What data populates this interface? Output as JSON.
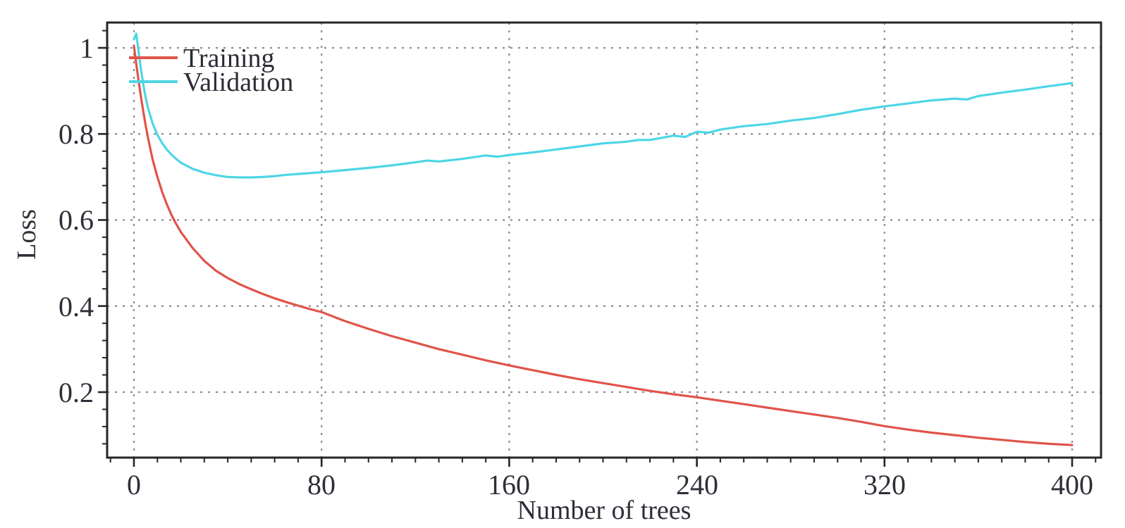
{
  "chart_data": {
    "type": "line",
    "title": "",
    "xlabel": "Number of trees",
    "ylabel": "Loss",
    "xlim": [
      -11.4,
      412.4
    ],
    "ylim": [
      0.048,
      1.059
    ],
    "x_major_ticks": [
      0,
      80,
      160,
      240,
      320,
      400
    ],
    "x_tick_labels": [
      "0",
      "80",
      "160",
      "240",
      "320",
      "400"
    ],
    "x_minor_step": 10,
    "y_major_ticks": [
      1.0,
      0.8,
      0.6,
      0.4,
      0.2
    ],
    "y_tick_labels": [
      "1",
      "0.8",
      "0.6",
      "0.4",
      "0.2"
    ],
    "y_minor_step": 0.04,
    "grid": "dotted lines at major ticks, both axes",
    "legend_position": "inside top-left, no border",
    "series": [
      {
        "name": "Training",
        "color": "#e0544a",
        "points": [
          [
            0,
            1.005
          ],
          [
            1,
            0.963
          ],
          [
            2,
            0.923
          ],
          [
            3,
            0.886
          ],
          [
            4,
            0.852
          ],
          [
            5,
            0.82
          ],
          [
            6,
            0.791
          ],
          [
            8,
            0.74
          ],
          [
            10,
            0.7
          ],
          [
            12,
            0.666
          ],
          [
            14,
            0.637
          ],
          [
            16,
            0.612
          ],
          [
            18,
            0.591
          ],
          [
            20,
            0.572
          ],
          [
            25,
            0.535
          ],
          [
            30,
            0.505
          ],
          [
            35,
            0.482
          ],
          [
            40,
            0.465
          ],
          [
            45,
            0.451
          ],
          [
            50,
            0.439
          ],
          [
            55,
            0.428
          ],
          [
            60,
            0.418
          ],
          [
            65,
            0.409
          ],
          [
            70,
            0.401
          ],
          [
            75,
            0.393
          ],
          [
            80,
            0.386
          ],
          [
            90,
            0.365
          ],
          [
            100,
            0.347
          ],
          [
            110,
            0.33
          ],
          [
            120,
            0.315
          ],
          [
            130,
            0.3
          ],
          [
            140,
            0.287
          ],
          [
            150,
            0.274
          ],
          [
            160,
            0.262
          ],
          [
            170,
            0.251
          ],
          [
            180,
            0.24
          ],
          [
            190,
            0.23
          ],
          [
            200,
            0.221
          ],
          [
            210,
            0.212
          ],
          [
            220,
            0.203
          ],
          [
            230,
            0.195
          ],
          [
            240,
            0.188
          ],
          [
            250,
            0.18
          ],
          [
            260,
            0.172
          ],
          [
            270,
            0.164
          ],
          [
            280,
            0.156
          ],
          [
            290,
            0.148
          ],
          [
            300,
            0.14
          ],
          [
            310,
            0.131
          ],
          [
            320,
            0.121
          ],
          [
            330,
            0.113
          ],
          [
            340,
            0.106
          ],
          [
            350,
            0.1
          ],
          [
            360,
            0.094
          ],
          [
            370,
            0.089
          ],
          [
            380,
            0.084
          ],
          [
            390,
            0.08
          ],
          [
            400,
            0.077
          ]
        ]
      },
      {
        "name": "Validation",
        "color": "#4dd6e6",
        "points": [
          [
            0,
            1.02
          ],
          [
            1,
            1.033
          ],
          [
            2,
            0.99
          ],
          [
            3,
            0.95
          ],
          [
            4,
            0.915
          ],
          [
            5,
            0.885
          ],
          [
            6,
            0.86
          ],
          [
            8,
            0.824
          ],
          [
            10,
            0.798
          ],
          [
            12,
            0.779
          ],
          [
            14,
            0.764
          ],
          [
            16,
            0.752
          ],
          [
            18,
            0.742
          ],
          [
            20,
            0.733
          ],
          [
            25,
            0.719
          ],
          [
            30,
            0.71
          ],
          [
            35,
            0.704
          ],
          [
            40,
            0.7
          ],
          [
            45,
            0.699
          ],
          [
            50,
            0.699
          ],
          [
            55,
            0.7
          ],
          [
            60,
            0.702
          ],
          [
            65,
            0.705
          ],
          [
            70,
            0.707
          ],
          [
            75,
            0.709
          ],
          [
            80,
            0.711
          ],
          [
            90,
            0.716
          ],
          [
            100,
            0.721
          ],
          [
            110,
            0.727
          ],
          [
            120,
            0.734
          ],
          [
            125,
            0.738
          ],
          [
            130,
            0.736
          ],
          [
            140,
            0.742
          ],
          [
            150,
            0.75
          ],
          [
            155,
            0.747
          ],
          [
            160,
            0.751
          ],
          [
            170,
            0.757
          ],
          [
            180,
            0.764
          ],
          [
            190,
            0.771
          ],
          [
            200,
            0.778
          ],
          [
            210,
            0.782
          ],
          [
            215,
            0.786
          ],
          [
            220,
            0.786
          ],
          [
            225,
            0.791
          ],
          [
            230,
            0.796
          ],
          [
            235,
            0.793
          ],
          [
            240,
            0.805
          ],
          [
            245,
            0.803
          ],
          [
            250,
            0.81
          ],
          [
            260,
            0.818
          ],
          [
            270,
            0.823
          ],
          [
            280,
            0.831
          ],
          [
            290,
            0.837
          ],
          [
            300,
            0.846
          ],
          [
            310,
            0.856
          ],
          [
            320,
            0.864
          ],
          [
            330,
            0.871
          ],
          [
            340,
            0.878
          ],
          [
            350,
            0.882
          ],
          [
            355,
            0.88
          ],
          [
            360,
            0.888
          ],
          [
            370,
            0.896
          ],
          [
            380,
            0.903
          ],
          [
            390,
            0.911
          ],
          [
            400,
            0.918
          ]
        ]
      }
    ]
  },
  "colors": {
    "training": "#e0544a",
    "validation": "#4dd6e6",
    "grid": "#8c8c8c",
    "frame": "#26262a",
    "text": "#2e2e38",
    "background": "#ffffff"
  }
}
